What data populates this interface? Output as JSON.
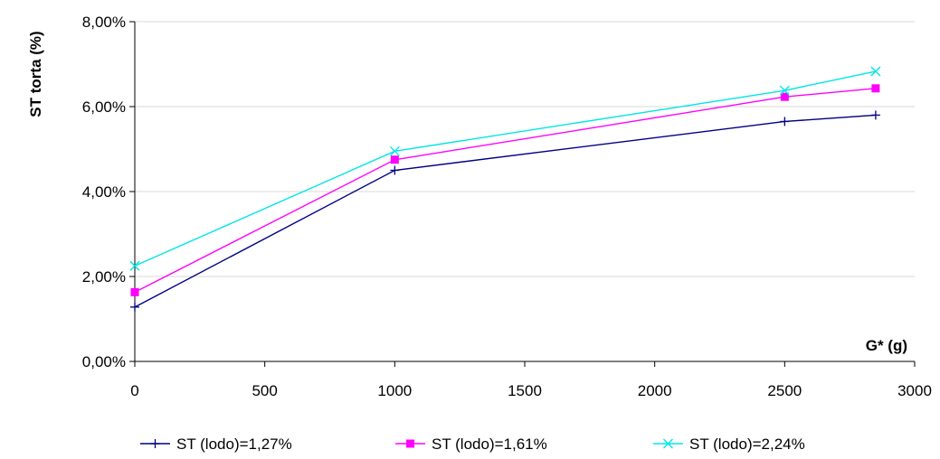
{
  "chart_data": {
    "type": "line",
    "title": "",
    "xlabel": "G* (g)",
    "ylabel": "ST torta (%)",
    "xlim": [
      0,
      3000
    ],
    "ylim": [
      0,
      8
    ],
    "x_ticks": [
      0,
      500,
      1000,
      1500,
      2000,
      2500,
      3000
    ],
    "x_tick_labels": [
      "0",
      "500",
      "1000",
      "1500",
      "2000",
      "2500",
      "3000"
    ],
    "y_ticks": [
      0,
      2,
      4,
      6,
      8
    ],
    "y_tick_labels": [
      "0,00%",
      "2,00%",
      "4,00%",
      "6,00%",
      "8,00%"
    ],
    "grid": "horizontal",
    "legend_position": "bottom",
    "series": [
      {
        "name": "ST (lodo)=1,27%",
        "color": "#000080",
        "marker": "plus",
        "x": [
          0,
          1000,
          2500,
          2850
        ],
        "y": [
          1.28,
          4.5,
          5.65,
          5.8
        ]
      },
      {
        "name": "ST (lodo)=1,61%",
        "color": "#ff00ff",
        "marker": "square",
        "x": [
          0,
          1000,
          2500,
          2850
        ],
        "y": [
          1.63,
          4.75,
          6.23,
          6.43
        ]
      },
      {
        "name": "ST (lodo)=2,24%",
        "color": "#00e5e5",
        "marker": "x",
        "x": [
          0,
          1000,
          2500,
          2850
        ],
        "y": [
          2.25,
          4.95,
          6.38,
          6.83
        ]
      }
    ]
  }
}
